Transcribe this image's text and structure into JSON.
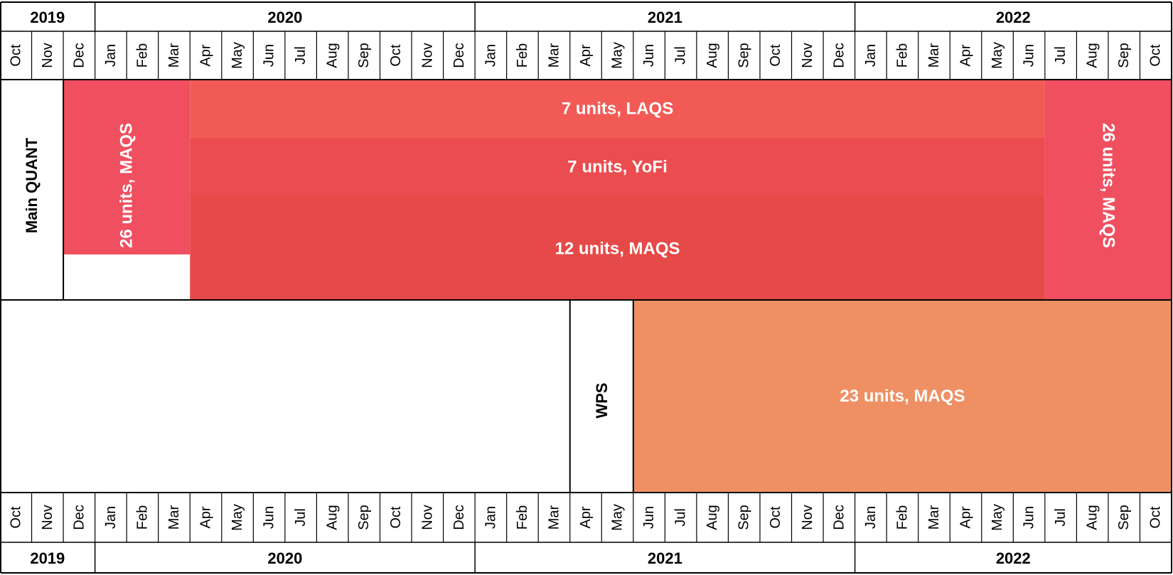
{
  "header_years": [
    {
      "label": "2019",
      "start": 0,
      "end": 3
    },
    {
      "label": "2020",
      "start": 3,
      "end": 15
    },
    {
      "label": "2021",
      "start": 15,
      "end": 27
    },
    {
      "label": "2022",
      "start": 27,
      "end": 37
    }
  ],
  "months": [
    "Oct",
    "Nov",
    "Dec",
    "Jan",
    "Feb",
    "Mar",
    "Apr",
    "May",
    "Jun",
    "Jul",
    "Aug",
    "Sep",
    "Oct",
    "Nov",
    "Dec",
    "Jan",
    "Feb",
    "Mar",
    "Apr",
    "May",
    "Jun",
    "Jul",
    "Aug",
    "Sep",
    "Oct",
    "Nov",
    "Dec",
    "Jan",
    "Feb",
    "Mar",
    "Apr",
    "May",
    "Jun",
    "Jul",
    "Aug",
    "Sep",
    "Oct"
  ],
  "footer_years": [
    {
      "label": "2019",
      "start": 0,
      "end": 3
    },
    {
      "label": "2020",
      "start": 3,
      "end": 15
    },
    {
      "label": "2021",
      "start": 15,
      "end": 27
    },
    {
      "label": "2022",
      "start": 27,
      "end": 37
    }
  ],
  "rows": {
    "main": {
      "label": "Main QUANT"
    },
    "wps": {
      "label": "WPS"
    }
  },
  "blocks": [
    {
      "id": "main-left-maqs",
      "row": "main",
      "label": "26 units, MAQS",
      "start": 2,
      "end": 6,
      "lane_start": 0,
      "lane_end": 3,
      "vertical": true,
      "rotation": -90,
      "color": "#f04f60"
    },
    {
      "id": "main-laqs",
      "row": "main",
      "label": "7 units, LAQS",
      "start": 6,
      "end": 33,
      "lane_start": 0,
      "lane_end": 1,
      "vertical": false,
      "color": "#f15a55"
    },
    {
      "id": "main-yofi",
      "row": "main",
      "label": "7 units, YoFi",
      "start": 6,
      "end": 33,
      "lane_start": 1,
      "lane_end": 2,
      "vertical": false,
      "color": "#eb4c4f"
    },
    {
      "id": "main-maqs-12",
      "row": "main",
      "label": "12 units, MAQS",
      "start": 6,
      "end": 33,
      "lane_start": 2,
      "lane_end": 3.75,
      "vertical": false,
      "color": "#e64a48"
    },
    {
      "id": "main-right-maqs",
      "row": "main",
      "label": "26 units, MAQS",
      "start": 33,
      "end": 37,
      "lane_start": 0,
      "lane_end": 3.75,
      "vertical": true,
      "rotation": 90,
      "color": "#f04f60"
    },
    {
      "id": "wps-maqs",
      "row": "wps",
      "label": "23 units, MAQS",
      "start": 20,
      "end": 37,
      "lane_start": 0,
      "lane_end": 1,
      "vertical": false,
      "color": "#ee9064"
    }
  ],
  "colors": {
    "border": "#000000",
    "grid": "#000000",
    "background": "#ffffff",
    "text_on_block": "#ffffff"
  }
}
